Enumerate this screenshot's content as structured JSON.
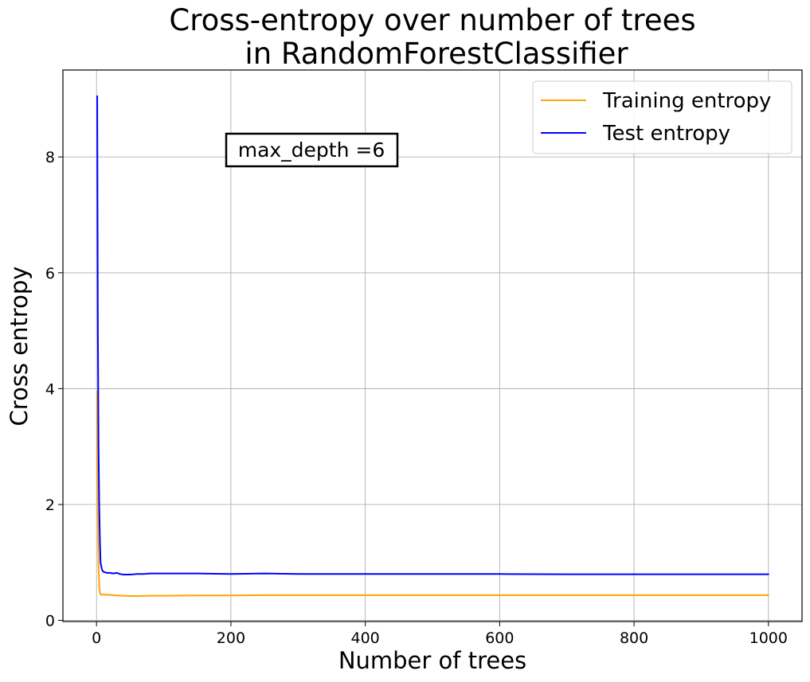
{
  "chart_data": {
    "type": "line",
    "title_lines": [
      "Cross-entropy over number of trees",
      "in RandomForestClassifier"
    ],
    "xlabel": "Number of trees",
    "ylabel": "Cross entropy",
    "xlim": [
      -50,
      1050
    ],
    "ylim": [
      -0.02,
      9.5
    ],
    "xticks": [
      0,
      200,
      400,
      600,
      800,
      1000
    ],
    "xtick_labels": [
      "0",
      "200",
      "400",
      "600",
      "800",
      "1000"
    ],
    "yticks": [
      0,
      2,
      4,
      6,
      8
    ],
    "ytick_labels": [
      "0",
      "2",
      "4",
      "6",
      "8"
    ],
    "grid": true,
    "legend_position": "top-right",
    "annotation": "max_depth =6",
    "series": [
      {
        "name": "Training entropy",
        "color": "#FFA500",
        "x": [
          1,
          2,
          3,
          4,
          5,
          6,
          8,
          10,
          15,
          20,
          30,
          40,
          50,
          60,
          80,
          100,
          150,
          200,
          250,
          300,
          400,
          500,
          600,
          700,
          800,
          900,
          1000
        ],
        "y": [
          3.95,
          1.8,
          0.95,
          0.6,
          0.48,
          0.45,
          0.44,
          0.445,
          0.44,
          0.44,
          0.43,
          0.425,
          0.42,
          0.42,
          0.425,
          0.425,
          0.43,
          0.43,
          0.435,
          0.435,
          0.435,
          0.435,
          0.435,
          0.435,
          0.435,
          0.435,
          0.435
        ]
      },
      {
        "name": "Test entropy",
        "color": "#0000FF",
        "x": [
          1,
          2,
          3,
          4,
          5,
          6,
          8,
          10,
          15,
          20,
          25,
          30,
          35,
          40,
          50,
          60,
          70,
          80,
          90,
          100,
          150,
          200,
          250,
          300,
          400,
          500,
          600,
          700,
          800,
          900,
          1000
        ],
        "y": [
          9.05,
          5.0,
          3.0,
          2.0,
          1.4,
          1.0,
          0.88,
          0.84,
          0.82,
          0.82,
          0.81,
          0.82,
          0.8,
          0.79,
          0.79,
          0.8,
          0.8,
          0.81,
          0.81,
          0.81,
          0.81,
          0.8,
          0.81,
          0.8,
          0.8,
          0.8,
          0.8,
          0.795,
          0.795,
          0.795,
          0.795
        ]
      }
    ]
  }
}
